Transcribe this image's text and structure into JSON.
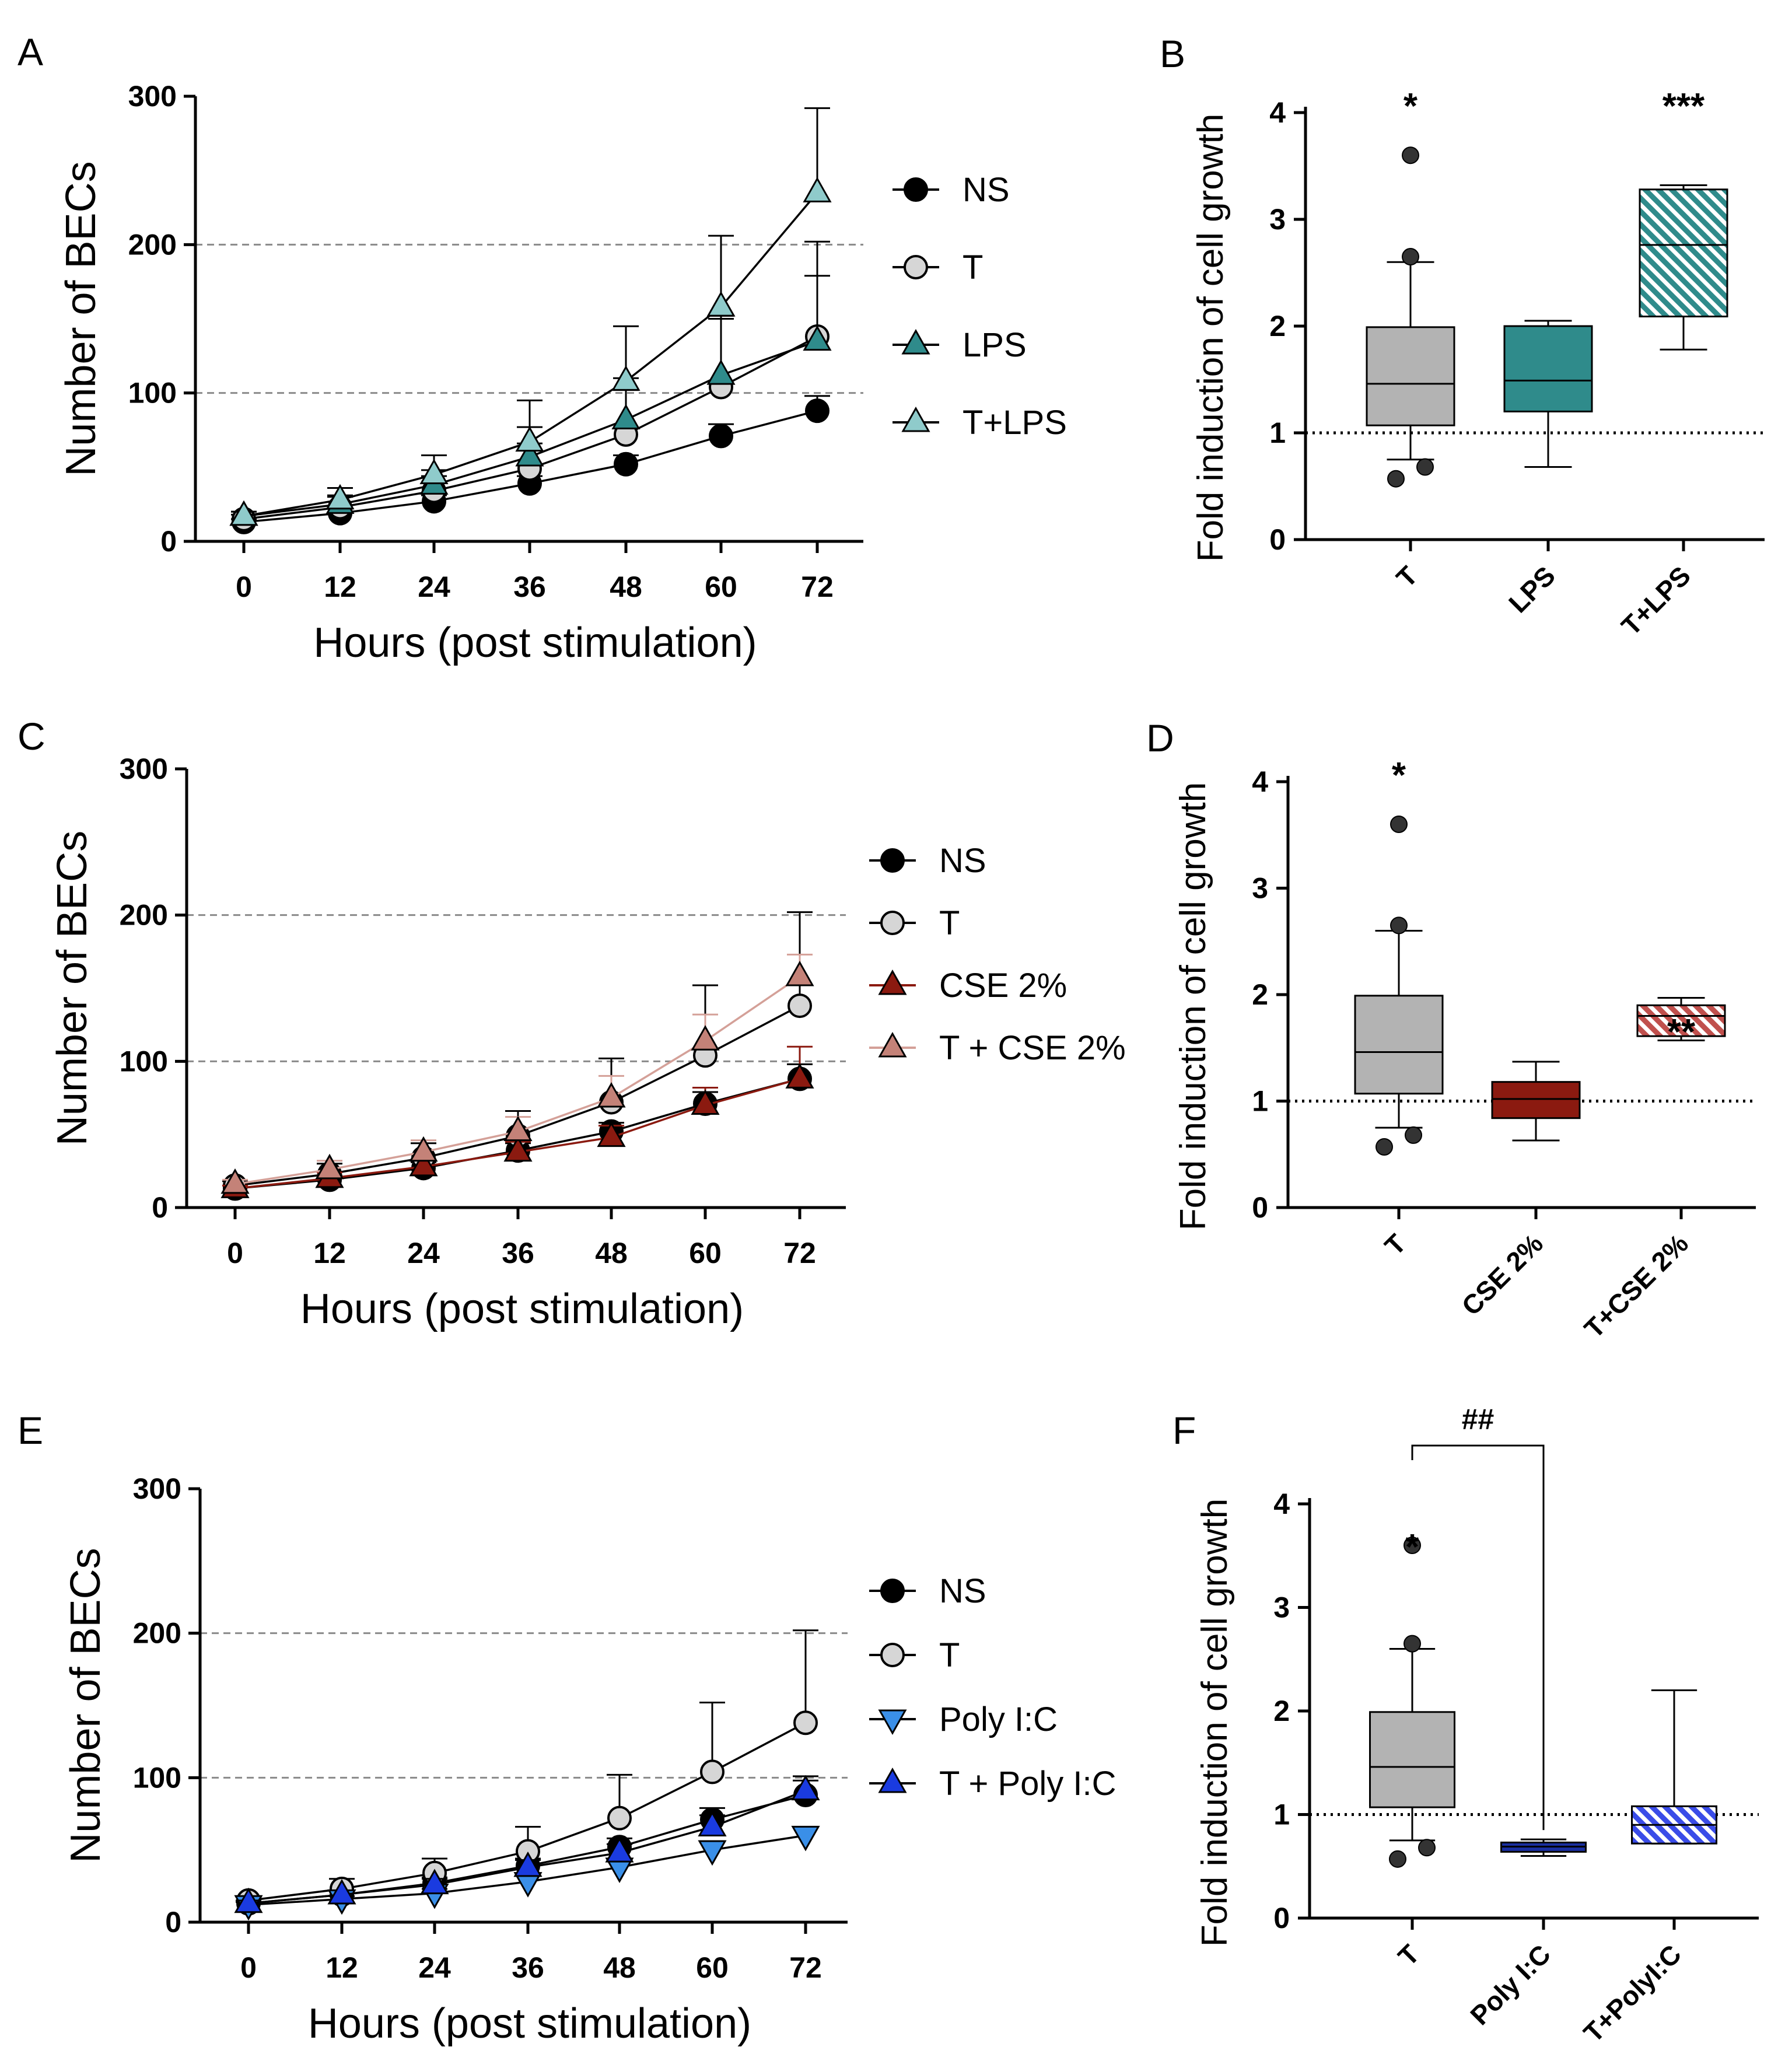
{
  "chart_data": [
    {
      "panel": "A",
      "type": "line",
      "x": [
        0,
        12,
        24,
        36,
        48,
        60,
        72
      ],
      "xticks": [
        "0",
        "12",
        "24",
        "36",
        "48",
        "60",
        "72"
      ],
      "xlabel": "Hours (post stimulation)",
      "ylabel": "Number of BECs",
      "ylim": [
        0,
        300
      ],
      "yticks": [
        "0",
        "100",
        "200",
        "300"
      ],
      "reference_lines": [
        100,
        200
      ],
      "legend_position": "right",
      "series": [
        {
          "name": "NS",
          "marker": "circle",
          "fill": "#000000",
          "line": "#000000",
          "values": [
            13,
            19,
            27,
            39,
            52,
            71,
            88
          ],
          "error": [
            2,
            3,
            4,
            5,
            6,
            8,
            10
          ]
        },
        {
          "name": "T",
          "marker": "circle",
          "fill": "#d6d6d6",
          "line": "#000000",
          "values": [
            15,
            23,
            34,
            49,
            72,
            104,
            138
          ],
          "error": [
            3,
            7,
            10,
            17,
            30,
            48,
            64
          ]
        },
        {
          "name": "LPS",
          "marker": "triangle",
          "fill": "#2f8b8b",
          "line": "#000000",
          "values": [
            17,
            25,
            38,
            57,
            82,
            112,
            135
          ],
          "error": [
            3,
            6,
            10,
            20,
            28,
            38,
            44
          ]
        },
        {
          "name": "T+LPS",
          "marker": "triangle",
          "fill": "#8fcbcb",
          "line": "#000000",
          "values": [
            17,
            28,
            45,
            67,
            108,
            158,
            235
          ],
          "error": [
            3,
            8,
            13,
            28,
            37,
            48,
            57
          ]
        }
      ]
    },
    {
      "panel": "B",
      "type": "box",
      "categories": [
        "T",
        "LPS",
        "T+LPS"
      ],
      "ylabel": "Fold induction of cell growth",
      "ylim": [
        0,
        4
      ],
      "yticks": [
        "0",
        "1",
        "2",
        "3",
        "4"
      ],
      "reference_line": 1,
      "boxes": [
        {
          "category": "T",
          "whisker_low": 0.75,
          "q1": 1.07,
          "median": 1.46,
          "q3": 1.99,
          "whisker_high": 2.6,
          "outliers": [
            0.57,
            0.68,
            2.65,
            3.6
          ],
          "color": "#b3b3b3",
          "hatched": false,
          "sig": "*"
        },
        {
          "category": "LPS",
          "whisker_low": 0.68,
          "q1": 1.2,
          "median": 1.49,
          "q3": 2.0,
          "whisker_high": 2.05,
          "outliers": [],
          "color": "#2f8b8b",
          "hatched": false,
          "sig": ""
        },
        {
          "category": "T+LPS",
          "whisker_low": 1.78,
          "q1": 2.09,
          "median": 2.76,
          "q3": 3.28,
          "whisker_high": 3.32,
          "outliers": [],
          "color": "#2f8b8b",
          "hatched": true,
          "sig": "***"
        }
      ]
    },
    {
      "panel": "C",
      "type": "line",
      "x": [
        0,
        12,
        24,
        36,
        48,
        60,
        72
      ],
      "xticks": [
        "0",
        "12",
        "24",
        "36",
        "48",
        "60",
        "72"
      ],
      "xlabel": "Hours (post stimulation)",
      "ylabel": "Number of BECs",
      "ylim": [
        0,
        300
      ],
      "yticks": [
        "0",
        "100",
        "200",
        "300"
      ],
      "reference_lines": [
        100,
        200
      ],
      "legend_position": "right",
      "series": [
        {
          "name": "NS",
          "marker": "circle",
          "fill": "#000000",
          "line": "#000000",
          "values": [
            13,
            19,
            27,
            39,
            52,
            71,
            88
          ],
          "error": [
            2,
            3,
            4,
            5,
            6,
            8,
            10
          ]
        },
        {
          "name": "T",
          "marker": "circle",
          "fill": "#d6d6d6",
          "line": "#000000",
          "values": [
            15,
            23,
            34,
            49,
            72,
            104,
            138
          ],
          "error": [
            3,
            7,
            10,
            17,
            30,
            48,
            64
          ]
        },
        {
          "name": "CSE 2%",
          "marker": "triangle",
          "fill": "#8b1a10",
          "line": "#8b1a10",
          "values": [
            13,
            20,
            28,
            38,
            48,
            70,
            88
          ],
          "error": [
            2,
            4,
            5,
            7,
            8,
            12,
            22
          ]
        },
        {
          "name": "T + CSE 2%",
          "marker": "triangle",
          "fill": "#c48278",
          "line": "#d4a098",
          "values": [
            16,
            26,
            38,
            52,
            75,
            114,
            158
          ],
          "error": [
            3,
            6,
            8,
            10,
            15,
            18,
            15
          ]
        }
      ]
    },
    {
      "panel": "D",
      "type": "box",
      "categories": [
        "T",
        "CSE 2%",
        "T+CSE 2%"
      ],
      "ylabel": "Fold induction of cell growth",
      "ylim": [
        0,
        4
      ],
      "yticks": [
        "0",
        "1",
        "2",
        "3",
        "4"
      ],
      "reference_line": 1,
      "boxes": [
        {
          "category": "T",
          "whisker_low": 0.75,
          "q1": 1.07,
          "median": 1.46,
          "q3": 1.99,
          "whisker_high": 2.6,
          "outliers": [
            0.57,
            0.68,
            2.65,
            3.6
          ],
          "color": "#b3b3b3",
          "hatched": false,
          "sig": "*"
        },
        {
          "category": "CSE 2%",
          "whisker_low": 0.63,
          "q1": 0.84,
          "median": 1.02,
          "q3": 1.18,
          "whisker_high": 1.37,
          "outliers": [],
          "color": "#8b1a10",
          "hatched": false,
          "sig": ""
        },
        {
          "category": "T+CSE 2%",
          "whisker_low": 1.57,
          "q1": 1.61,
          "median": 1.8,
          "q3": 1.9,
          "whisker_high": 1.97,
          "outliers": [],
          "color": "#c0504d",
          "hatched": true,
          "sig": "**"
        }
      ]
    },
    {
      "panel": "E",
      "type": "line",
      "x": [
        0,
        12,
        24,
        36,
        48,
        60,
        72
      ],
      "xticks": [
        "0",
        "12",
        "24",
        "36",
        "48",
        "60",
        "72"
      ],
      "xlabel": "Hours (post stimulation)",
      "ylabel": "Number of BECs",
      "ylim": [
        0,
        300
      ],
      "yticks": [
        "0",
        "100",
        "200",
        "300"
      ],
      "reference_lines": [
        100,
        200
      ],
      "legend_position": "right",
      "series": [
        {
          "name": "NS",
          "marker": "circle",
          "fill": "#000000",
          "line": "#000000",
          "values": [
            13,
            19,
            27,
            39,
            52,
            71,
            88
          ],
          "error": [
            2,
            3,
            4,
            5,
            6,
            8,
            10
          ]
        },
        {
          "name": "T",
          "marker": "circle",
          "fill": "#d6d6d6",
          "line": "#000000",
          "values": [
            15,
            23,
            34,
            49,
            72,
            104,
            138
          ],
          "error": [
            3,
            7,
            10,
            17,
            30,
            48,
            64
          ]
        },
        {
          "name": "Poly I:C",
          "marker": "triangle-down",
          "fill": "#3a8fe8",
          "line": "#000000",
          "values": [
            12,
            16,
            20,
            28,
            38,
            50,
            60
          ],
          "error": [
            2,
            2,
            3,
            4,
            5,
            6,
            6
          ]
        },
        {
          "name": "T + Poly I:C",
          "marker": "triangle",
          "fill": "#1a3be0",
          "line": "#000000",
          "values": [
            13,
            19,
            26,
            38,
            48,
            66,
            91
          ],
          "error": [
            2,
            3,
            4,
            5,
            6,
            8,
            10
          ]
        }
      ]
    },
    {
      "panel": "F",
      "type": "box",
      "categories": [
        "T",
        "Poly I:C",
        "T+PolyI:C"
      ],
      "ylabel": "Fold induction of cell growth",
      "ylim": [
        0,
        4
      ],
      "yticks": [
        "0",
        "1",
        "2",
        "3",
        "4"
      ],
      "reference_line": 1,
      "comparison_bracket": {
        "from": "T",
        "to": "Poly I:C",
        "label": "##"
      },
      "boxes": [
        {
          "category": "T",
          "whisker_low": 0.75,
          "q1": 1.07,
          "median": 1.46,
          "q3": 1.99,
          "whisker_high": 2.6,
          "outliers": [
            0.57,
            0.68,
            2.65,
            3.6
          ],
          "color": "#b3b3b3",
          "hatched": false,
          "sig": "*"
        },
        {
          "category": "Poly I:C",
          "whisker_low": 0.6,
          "q1": 0.64,
          "median": 0.69,
          "q3": 0.73,
          "whisker_high": 0.76,
          "outliers": [],
          "color": "#1a2fa0",
          "hatched": false,
          "sig": ""
        },
        {
          "category": "T+PolyI:C",
          "whisker_low": 0.72,
          "q1": 0.72,
          "median": 0.9,
          "q3": 1.08,
          "whisker_high": 2.2,
          "outliers": [],
          "color": "#3a4ce8",
          "hatched": true,
          "sig": ""
        }
      ]
    }
  ]
}
